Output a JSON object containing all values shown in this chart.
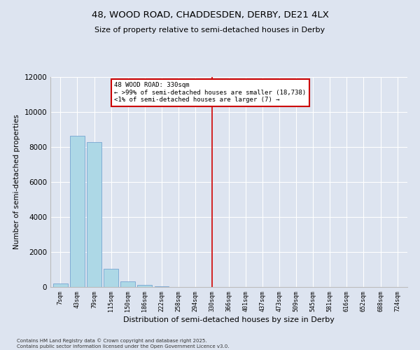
{
  "title_line1": "48, WOOD ROAD, CHADDESDEN, DERBY, DE21 4LX",
  "title_line2": "Size of property relative to semi-detached houses in Derby",
  "xlabel": "Distribution of semi-detached houses by size in Derby",
  "ylabel": "Number of semi-detached properties",
  "categories": [
    "7sqm",
    "43sqm",
    "79sqm",
    "115sqm",
    "150sqm",
    "186sqm",
    "222sqm",
    "258sqm",
    "294sqm",
    "330sqm",
    "366sqm",
    "401sqm",
    "437sqm",
    "473sqm",
    "509sqm",
    "545sqm",
    "581sqm",
    "616sqm",
    "652sqm",
    "688sqm",
    "724sqm"
  ],
  "values": [
    200,
    8650,
    8300,
    1050,
    340,
    110,
    60,
    0,
    0,
    0,
    0,
    0,
    0,
    0,
    0,
    0,
    0,
    0,
    0,
    0,
    0
  ],
  "bar_color": "#add8e6",
  "bar_edge_color": "#6699cc",
  "vline_x_index": 9,
  "vline_color": "#cc0000",
  "annotation_title": "48 WOOD ROAD: 330sqm",
  "annotation_line1": "← >99% of semi-detached houses are smaller (18,738)",
  "annotation_line2": "<1% of semi-detached houses are larger (7) →",
  "annotation_box_color": "#cc0000",
  "ylim": [
    0,
    12000
  ],
  "yticks": [
    0,
    2000,
    4000,
    6000,
    8000,
    10000,
    12000
  ],
  "footnote_line1": "Contains HM Land Registry data © Crown copyright and database right 2025.",
  "footnote_line2": "Contains public sector information licensed under the Open Government Licence v3.0.",
  "bg_color": "#dde4f0",
  "plot_bg_color": "#dde4f0"
}
